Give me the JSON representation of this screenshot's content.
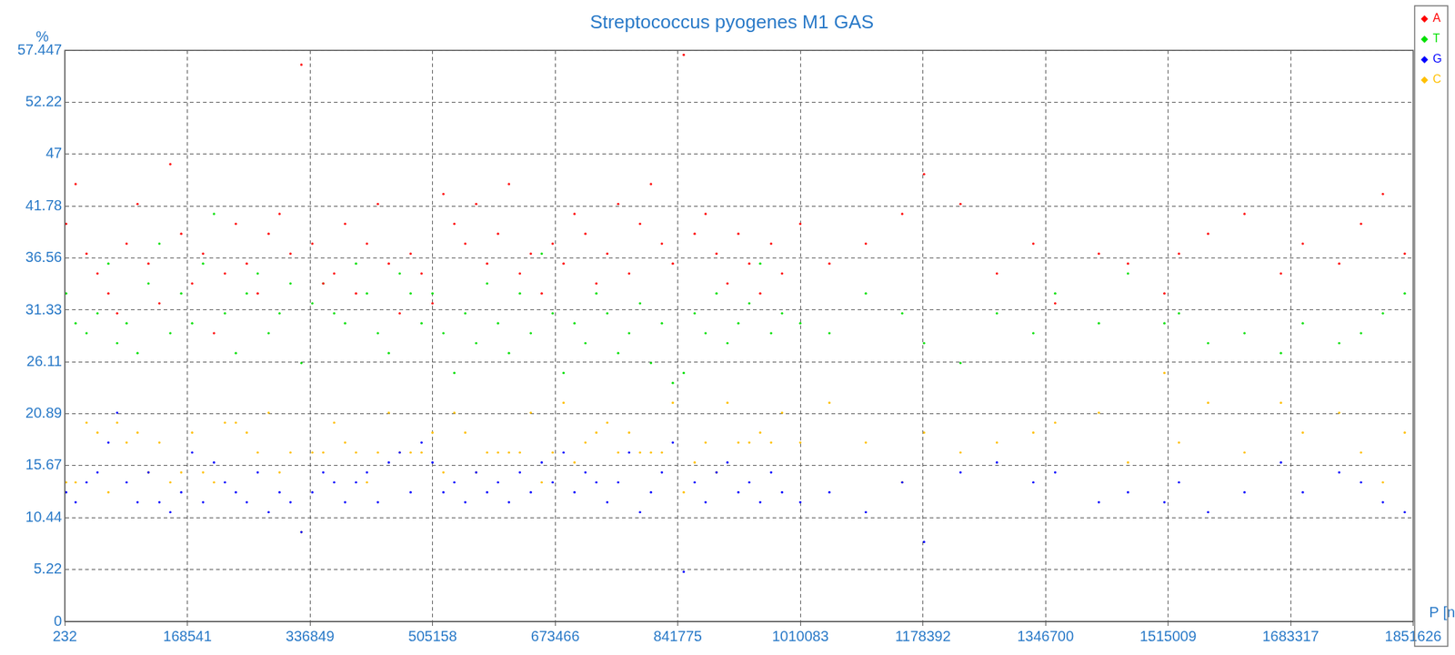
{
  "chart_data": {
    "type": "scatter",
    "title": "Streptococcus pyogenes M1 GAS",
    "x_label": "P [nucl]",
    "y_label": "%",
    "xlim": [
      232,
      1851626
    ],
    "xticks": [
      232,
      168541,
      336849,
      505158,
      673466,
      841775,
      1010083,
      1178392,
      1346700,
      1515009,
      1683317,
      1851626
    ],
    "ylim": [
      0,
      57.447
    ],
    "yticks": [
      0,
      5.22,
      10.44,
      15.67,
      20.89,
      26.11,
      31.33,
      36.56,
      41.78,
      47,
      52.22,
      57.447
    ],
    "grid": true,
    "legend": "right",
    "marker": "circle",
    "x": [
      2000,
      15000,
      30000,
      45000,
      60000,
      72000,
      85000,
      100000,
      115000,
      130000,
      145000,
      160000,
      175000,
      190000,
      205000,
      220000,
      235000,
      250000,
      265000,
      280000,
      295000,
      310000,
      325000,
      340000,
      355000,
      370000,
      385000,
      400000,
      415000,
      430000,
      445000,
      460000,
      475000,
      490000,
      505000,
      520000,
      535000,
      550000,
      565000,
      580000,
      595000,
      610000,
      625000,
      640000,
      655000,
      670000,
      685000,
      700000,
      715000,
      730000,
      745000,
      760000,
      775000,
      790000,
      805000,
      820000,
      835000,
      850000,
      865000,
      880000,
      895000,
      910000,
      925000,
      940000,
      955000,
      970000,
      985000,
      1010000,
      1050000,
      1100000,
      1150000,
      1180000,
      1230000,
      1280000,
      1330000,
      1360000,
      1420000,
      1460000,
      1510000,
      1530000,
      1570000,
      1620000,
      1670000,
      1700000,
      1750000,
      1780000,
      1810000,
      1840000
    ],
    "series": [
      {
        "name": "A",
        "color": "#ff0000",
        "values": [
          40,
          44,
          37,
          35,
          33,
          31,
          38,
          42,
          36,
          32,
          46,
          39,
          34,
          37,
          29,
          35,
          40,
          36,
          33,
          39,
          41,
          37,
          56,
          38,
          34,
          35,
          40,
          33,
          38,
          42,
          36,
          31,
          37,
          35,
          32,
          43,
          40,
          38,
          42,
          36,
          39,
          44,
          35,
          37,
          33,
          38,
          36,
          41,
          39,
          34,
          37,
          42,
          35,
          40,
          44,
          38,
          36,
          57,
          39,
          41,
          37,
          34,
          39,
          36,
          33,
          38,
          35,
          40,
          36,
          38,
          41,
          45,
          42,
          35,
          38,
          32,
          37,
          36,
          33,
          37,
          39,
          41,
          35,
          38,
          36,
          40,
          43,
          37
        ]
      },
      {
        "name": "T",
        "color": "#00e000",
        "values": [
          33,
          30,
          29,
          31,
          36,
          28,
          30,
          27,
          34,
          38,
          29,
          33,
          30,
          36,
          41,
          31,
          27,
          33,
          35,
          29,
          31,
          34,
          26,
          32,
          34,
          31,
          30,
          36,
          33,
          29,
          27,
          35,
          33,
          30,
          33,
          29,
          25,
          31,
          28,
          34,
          30,
          27,
          33,
          29,
          37,
          31,
          25,
          30,
          28,
          33,
          31,
          27,
          29,
          32,
          26,
          30,
          24,
          25,
          31,
          29,
          33,
          28,
          30,
          32,
          36,
          29,
          31,
          30,
          29,
          33,
          31,
          28,
          26,
          31,
          29,
          33,
          30,
          35,
          30,
          31,
          28,
          29,
          27,
          30,
          28,
          29,
          31,
          33
        ]
      },
      {
        "name": "G",
        "color": "#0000ff",
        "values": [
          13,
          12,
          14,
          15,
          18,
          21,
          14,
          12,
          15,
          12,
          11,
          13,
          17,
          12,
          16,
          14,
          13,
          12,
          15,
          11,
          13,
          12,
          9,
          13,
          15,
          14,
          12,
          14,
          15,
          12,
          16,
          17,
          13,
          18,
          16,
          13,
          14,
          12,
          15,
          13,
          14,
          12,
          15,
          13,
          16,
          14,
          17,
          13,
          15,
          14,
          12,
          14,
          17,
          11,
          13,
          15,
          18,
          5,
          14,
          12,
          15,
          16,
          13,
          14,
          12,
          15,
          13,
          12,
          13,
          11,
          14,
          8,
          15,
          16,
          14,
          15,
          12,
          13,
          12,
          14,
          11,
          13,
          16,
          13,
          15,
          14,
          12,
          11
        ]
      },
      {
        "name": "C",
        "color": "#ffc000",
        "values": [
          14,
          14,
          20,
          19,
          13,
          20,
          18,
          19,
          15,
          18,
          14,
          15,
          19,
          15,
          14,
          20,
          20,
          19,
          17,
          21,
          15,
          17,
          9,
          17,
          17,
          20,
          18,
          17,
          14,
          17,
          21,
          17,
          17,
          17,
          19,
          15,
          21,
          19,
          15,
          17,
          17,
          17,
          17,
          21,
          14,
          17,
          22,
          16,
          18,
          19,
          20,
          17,
          19,
          17,
          17,
          17,
          22,
          13,
          16,
          18,
          15,
          22,
          18,
          18,
          19,
          18,
          21,
          18,
          22,
          18,
          14,
          19,
          17,
          18,
          19,
          20,
          21,
          16,
          25,
          18,
          22,
          17,
          22,
          19,
          21,
          17,
          14,
          19
        ]
      }
    ]
  }
}
